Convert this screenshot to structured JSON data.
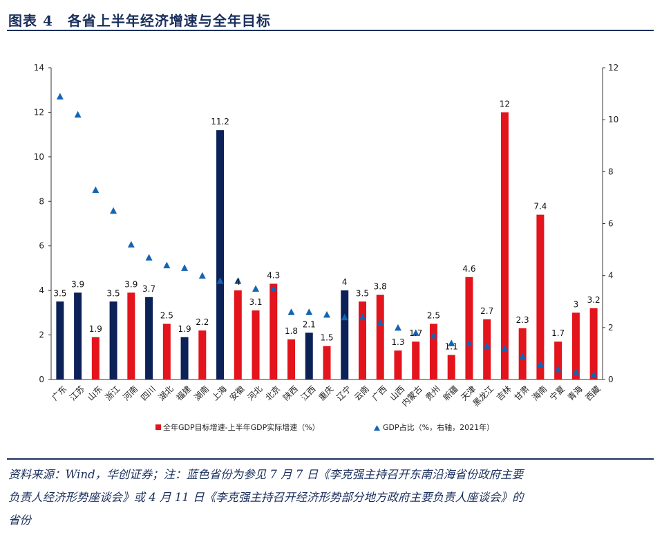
{
  "header": {
    "title": "图表 4　各省上半年经济增速与全年目标"
  },
  "source": {
    "line1": "资料来源：Wind，华创证券；注：蓝色省份为参见 7 月 7 日《李克强主持召开东南沿海省份政府主要",
    "line2": "负责人经济形势座谈会》或 4 月 11 日《李克强主持召开经济形势部分地方政府主要负责人座谈会》的",
    "line3": "省份"
  },
  "colors": {
    "red": "#e3141c",
    "blue": "#0b2157",
    "triangle": "#1464b4",
    "axis": "#333333"
  },
  "chart_data": {
    "type": "bar",
    "title": "",
    "categories": [
      "广东",
      "江苏",
      "山东",
      "浙江",
      "河南",
      "四川",
      "湖北",
      "福建",
      "湖南",
      "上海",
      "安徽",
      "河北",
      "北京",
      "陕西",
      "江西",
      "重庆",
      "辽宁",
      "云南",
      "广西",
      "山西",
      "内蒙古",
      "贵州",
      "新疆",
      "天津",
      "黑龙江",
      "吉林",
      "甘肃",
      "海南",
      "宁夏",
      "青海",
      "西藏"
    ],
    "series": [
      {
        "name": "全年GDP目标增速-上半年GDP实际增速（%）",
        "axis": "left",
        "kind": "bar",
        "values": [
          3.5,
          3.9,
          1.9,
          3.5,
          3.9,
          3.7,
          2.5,
          1.9,
          2.2,
          11.2,
          4,
          3.1,
          4.3,
          1.8,
          2.1,
          1.5,
          4,
          3.5,
          3.8,
          1.3,
          1.7,
          2.5,
          1.1,
          4.6,
          2.7,
          12,
          2.3,
          7.4,
          1.7,
          3,
          3.2
        ],
        "value_labels": [
          "3.5",
          "3.9",
          "1.9",
          "3.5",
          "3.9",
          "3.7",
          "2.5",
          "1.9",
          "2.2",
          "11.2",
          "4",
          "3.1",
          "4.3",
          "1.8",
          "2.1",
          "1.5",
          "4",
          "3.5",
          "3.8",
          "1.3",
          "1.7",
          "2.5",
          "1.1",
          "4.6",
          "2.7",
          "12",
          "2.3",
          "7.4",
          "1.7",
          "3",
          "3.2"
        ],
        "highlight": [
          true,
          true,
          false,
          true,
          false,
          true,
          false,
          true,
          false,
          true,
          false,
          false,
          false,
          false,
          true,
          false,
          true,
          false,
          false,
          false,
          false,
          false,
          false,
          false,
          false,
          false,
          false,
          false,
          false,
          false,
          false
        ]
      },
      {
        "name": "GDP占比（%，右轴，2021年）",
        "axis": "right",
        "kind": "marker",
        "values": [
          10.9,
          10.2,
          7.3,
          6.5,
          5.2,
          4.7,
          4.4,
          4.3,
          4.0,
          3.8,
          3.8,
          3.5,
          3.5,
          2.6,
          2.6,
          2.5,
          2.4,
          2.4,
          2.2,
          2.0,
          1.8,
          1.7,
          1.4,
          1.4,
          1.3,
          1.2,
          0.9,
          0.6,
          0.4,
          0.3,
          0.2
        ]
      }
    ],
    "ylim": [
      0,
      14
    ],
    "yticks": [
      0,
      2,
      4,
      6,
      8,
      10,
      12,
      14
    ],
    "y2lim": [
      0,
      12
    ],
    "y2ticks": [
      0,
      2,
      4,
      6,
      8,
      10,
      12
    ],
    "xlabel": "",
    "ylabel": "",
    "legend": {
      "position": "bottom",
      "bar_label": "全年GDP目标增速-上半年GDP实际增速（%）",
      "marker_label": "GDP占比（%，右轴，2021年）"
    }
  }
}
